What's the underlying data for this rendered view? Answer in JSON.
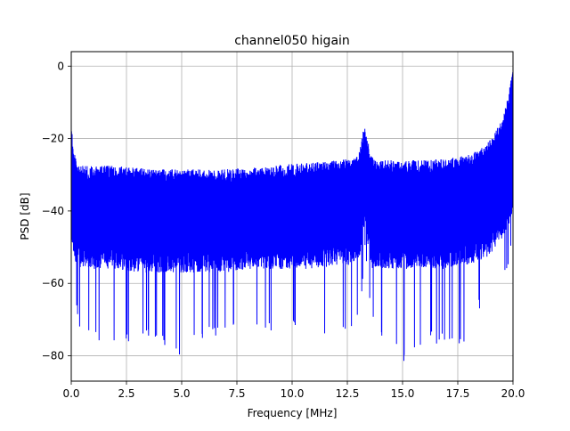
{
  "chart_data": {
    "type": "line",
    "title": "channel050 higain",
    "xlabel": "Frequency [MHz]",
    "ylabel": "PSD [dB]",
    "xlim": [
      0,
      20
    ],
    "ylim": [
      -87,
      4
    ],
    "grid": true,
    "line_color": "#0000ff",
    "x_ticks": [
      0.0,
      2.5,
      5.0,
      7.5,
      10.0,
      12.5,
      15.0,
      17.5,
      20.0
    ],
    "x_tick_labels": [
      "0.0",
      "2.5",
      "5.0",
      "7.5",
      "10.0",
      "12.5",
      "15.0",
      "17.5",
      "20.0"
    ],
    "y_ticks": [
      0,
      -20,
      -40,
      -60,
      -80
    ],
    "y_tick_labels": [
      "0",
      "−20",
      "−40",
      "−60",
      "−80"
    ],
    "series": [
      {
        "x": [
          0.0,
          0.05,
          0.1,
          0.2,
          0.3,
          0.5,
          1.0,
          2.0,
          3.0,
          4.0,
          5.0,
          6.0,
          7.0,
          8.0,
          9.0,
          10.0,
          11.0,
          12.0,
          12.5,
          13.0,
          13.2,
          13.3,
          13.4,
          13.6,
          14.0,
          15.0,
          16.0,
          17.0,
          17.5,
          18.0,
          18.5,
          19.0,
          19.5,
          19.8,
          20.0
        ],
        "upper": [
          -14,
          -19,
          -23,
          -25,
          -26.5,
          -27.5,
          -27.5,
          -27.5,
          -28,
          -28.5,
          -28.5,
          -28.5,
          -28.5,
          -28,
          -27.5,
          -27,
          -26.5,
          -26,
          -25.5,
          -25,
          -18,
          -17,
          -19,
          -25,
          -26,
          -26,
          -26,
          -25.5,
          -25,
          -24.5,
          -23,
          -20,
          -15,
          -8,
          0
        ],
        "lower": [
          -55,
          -57,
          -60,
          -65,
          -72,
          -75,
          -76,
          -77,
          -76,
          -77,
          -80,
          -76,
          -74,
          -75,
          -74,
          -74,
          -75,
          -75,
          -74,
          -72,
          -60,
          -52,
          -58,
          -70,
          -76,
          -82,
          -77,
          -78,
          -80,
          -73,
          -68,
          -66,
          -62,
          -55,
          -46
        ],
        "band_low": [
          -50,
          -50,
          -52,
          -54,
          -55,
          -56,
          -56,
          -56,
          -57,
          -57,
          -57,
          -57,
          -57,
          -56,
          -56,
          -56,
          -56,
          -55,
          -55,
          -54,
          -48,
          -44,
          -48,
          -56,
          -56,
          -56,
          -56,
          -56,
          -55,
          -55,
          -54,
          -52,
          -48,
          -44,
          -40
        ]
      }
    ]
  }
}
